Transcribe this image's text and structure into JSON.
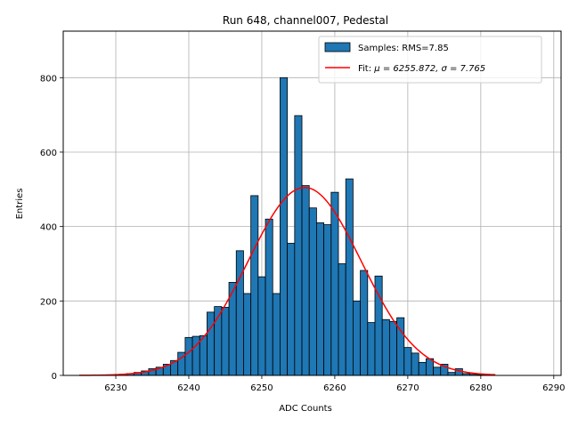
{
  "chart_data": {
    "type": "bar",
    "title": "Run 648, channel007, Pedestal",
    "xlabel": "ADC Counts",
    "ylabel": "Entries",
    "xlim": [
      6222.8,
      6291
    ],
    "ylim": [
      0,
      925
    ],
    "grid": true,
    "legend_position": "top-right",
    "x_ticks": [
      6230,
      6240,
      6250,
      6260,
      6270,
      6280,
      6290
    ],
    "y_ticks": [
      0,
      200,
      400,
      600,
      800
    ],
    "bin_width": 1,
    "bins": {
      "x": [
        6231,
        6232,
        6233,
        6234,
        6235,
        6236,
        6237,
        6238,
        6239,
        6240,
        6241,
        6242,
        6243,
        6244,
        6245,
        6246,
        6247,
        6248,
        6249,
        6250,
        6251,
        6252,
        6253,
        6254,
        6255,
        6256,
        6257,
        6258,
        6259,
        6260,
        6261,
        6262,
        6263,
        6264,
        6265,
        6266,
        6267,
        6268,
        6269,
        6270,
        6271,
        6272,
        6273,
        6274,
        6275,
        6276,
        6277,
        6278,
        6279,
        6280,
        6281
      ],
      "values": [
        3,
        5,
        8,
        12,
        18,
        22,
        30,
        40,
        62,
        102,
        105,
        107,
        170,
        185,
        183,
        250,
        335,
        220,
        483,
        265,
        420,
        220,
        800,
        355,
        698,
        510,
        450,
        410,
        405,
        492,
        300,
        528,
        200,
        282,
        142,
        267,
        150,
        145,
        155,
        75,
        60,
        35,
        45,
        22,
        30,
        8,
        18,
        5,
        3,
        2,
        2
      ]
    },
    "series": [
      {
        "name": "Samples: RMS=7.85",
        "kind": "histogram",
        "color": "#1f77b4"
      },
      {
        "name": "Fit: μ = 6255.872, σ = 7.765",
        "kind": "gaussian",
        "color": "#ff0000",
        "mu": 6255.872,
        "sigma": 7.765,
        "amplitude": 505,
        "x_range": [
          6225,
          6282
        ]
      }
    ],
    "legend": [
      {
        "label_prefix": "Samples: RMS=7.85",
        "label_math": ""
      },
      {
        "label_prefix": "Fit: ",
        "label_math": "μ = 6255.872, σ = 7.765"
      }
    ]
  }
}
